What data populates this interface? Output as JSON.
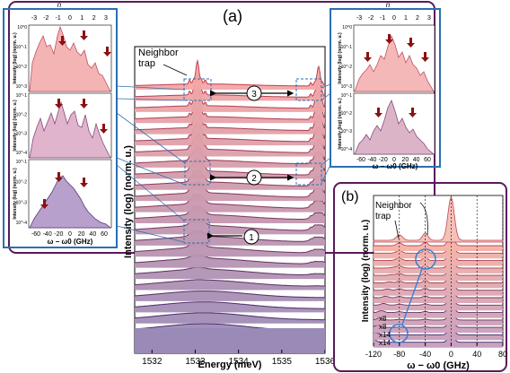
{
  "figure": {
    "panel_a_label": "(a)",
    "panel_b_label": "(b)",
    "neighbor_trap_label_a": [
      "Neighbor",
      "trap"
    ],
    "neighbor_trap_label_b": [
      "Neighbor",
      "trap"
    ],
    "markers": [
      "1",
      "2",
      "3"
    ],
    "colors": {
      "panel_border": "#5a1a5a",
      "inset_border": "#2a6fb5",
      "arrow_red": "#8b0000",
      "circle_blue": "#3a7fd5",
      "spectrum_top": "#e87070",
      "spectrum_bottom": "#3a2a6a"
    }
  },
  "chart_data": [
    {
      "type": "line",
      "title": "",
      "xlabel": "Energy (meV)",
      "ylabel": "Intensity (log) (norm. u.)",
      "x_ticks": [
        "1532",
        "1533",
        "1534",
        "1535",
        "1536"
      ],
      "x_range": [
        1531.6,
        1536.0
      ],
      "series_count": 24,
      "peaks_meV": [
        1533.05,
        1535.85
      ],
      "grid": false
    },
    {
      "type": "line",
      "title": "",
      "top_axis_label": "n",
      "top_ticks": [
        "-3",
        "-2",
        "-1",
        "0",
        "1",
        "2",
        "3"
      ],
      "xlabel": "ω − ω0 (GHz)",
      "x_ticks": [
        "-60",
        "-40",
        "-20",
        "0",
        "20",
        "40",
        "60"
      ],
      "ylabel": "Intensity (log) (norm. u.)",
      "y_ticks_top": [
        "10^0",
        "10^-1",
        "10^-2",
        "10^-3"
      ],
      "y_ticks_mid": [
        "10^-1",
        "10^-2",
        "10^-3",
        "10^-4"
      ],
      "y_ticks_bottom": [
        "10^-1",
        "10^-2",
        "10^-3",
        "10^-4"
      ],
      "position": "left insets"
    },
    {
      "type": "line",
      "title": "",
      "top_axis_label": "n",
      "top_ticks": [
        "-3",
        "-2",
        "-1",
        "0",
        "1",
        "2",
        "3"
      ],
      "xlabel": "ω − ω0 (GHz)",
      "x_ticks": [
        "-60",
        "-40",
        "-20",
        "0",
        "20",
        "40",
        "60"
      ],
      "ylabel": "Intensity (log) (norm. u.)",
      "y_ticks_top": [
        "10^0",
        "10^-1",
        "10^-2",
        "10^-3"
      ],
      "y_ticks_bottom": [
        "10^-1",
        "10^-2",
        "10^-3",
        "10^-4"
      ],
      "position": "right insets"
    },
    {
      "type": "line",
      "title": "",
      "xlabel": "ω − ω0 (GHz)",
      "ylabel": "Intensity (log) (norm. u.)",
      "x_ticks": [
        "-120",
        "-80",
        "-40",
        "0",
        "40",
        "80"
      ],
      "x_range": [
        -120,
        80
      ],
      "scale_labels": [
        "x8",
        "x8",
        "x14",
        "x14"
      ],
      "series_count": 14
    }
  ]
}
